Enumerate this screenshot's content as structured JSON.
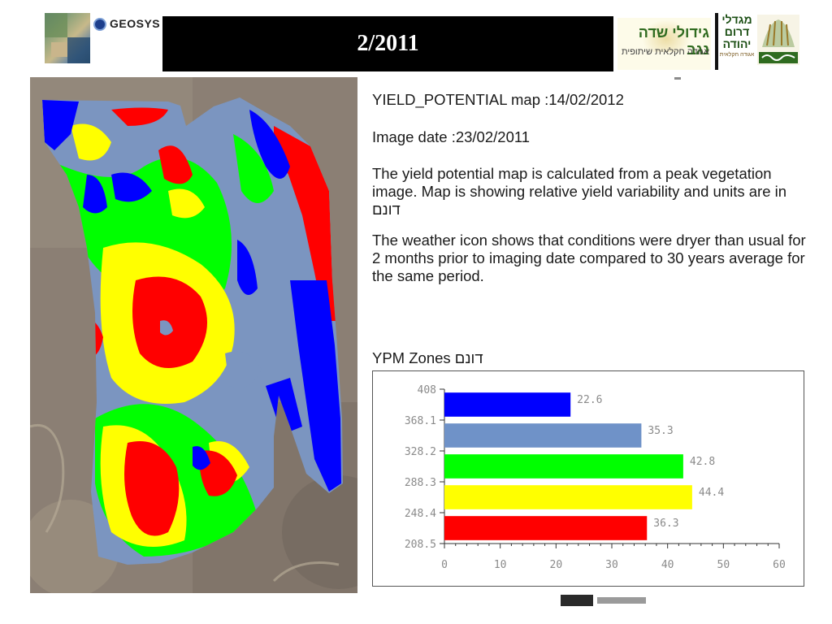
{
  "header": {
    "title": "2/2011",
    "left_logo_text": "GEOSYS",
    "center_logo_line1": "גידולי שדה נגב",
    "center_logo_line2": "אגודה חקלאית שיתופית",
    "right_logo_text": "מגדלי דרום יהודה",
    "right_logo_subtext": "אגודה חקלאית"
  },
  "info": {
    "map_title": "YIELD_POTENTIAL map :14/02/2012",
    "image_date": "Image date :23/02/2011",
    "description_yield": "The yield potential map is calculated from a peak vegetation image. Map is showing relative yield variability and units are in דונם",
    "description_weather": "The weather icon shows that conditions were dryer than usual for 2 months prior to imaging date compared to 30 years average for the same period.",
    "zones_label": "YPM Zones דונם"
  },
  "chart_data": {
    "type": "bar",
    "orientation": "horizontal",
    "title": "YPM Zones דונם",
    "y_ticks": [
      "408",
      "368.1",
      "328.2",
      "288.3",
      "248.4",
      "208.5"
    ],
    "x_ticks": [
      "0",
      "10",
      "20",
      "30",
      "40",
      "50",
      "60"
    ],
    "xlim": [
      0,
      60
    ],
    "ylim": [
      208.5,
      408
    ],
    "grid": false,
    "values": [
      22.6,
      35.3,
      42.8,
      44.4,
      36.3
    ],
    "value_labels": [
      "22.6",
      "35.3",
      "42.8",
      "44.4",
      "36.3"
    ],
    "colors": [
      "#0000ff",
      "#6f92c8",
      "#00ff00",
      "#ffff00",
      "#ff0000"
    ]
  },
  "map_colors": {
    "blue": "#0000ff",
    "slate": "#7b95c0",
    "green": "#00ff00",
    "yellow": "#ffff00",
    "red": "#ff0000",
    "background": "#8b7f74"
  }
}
